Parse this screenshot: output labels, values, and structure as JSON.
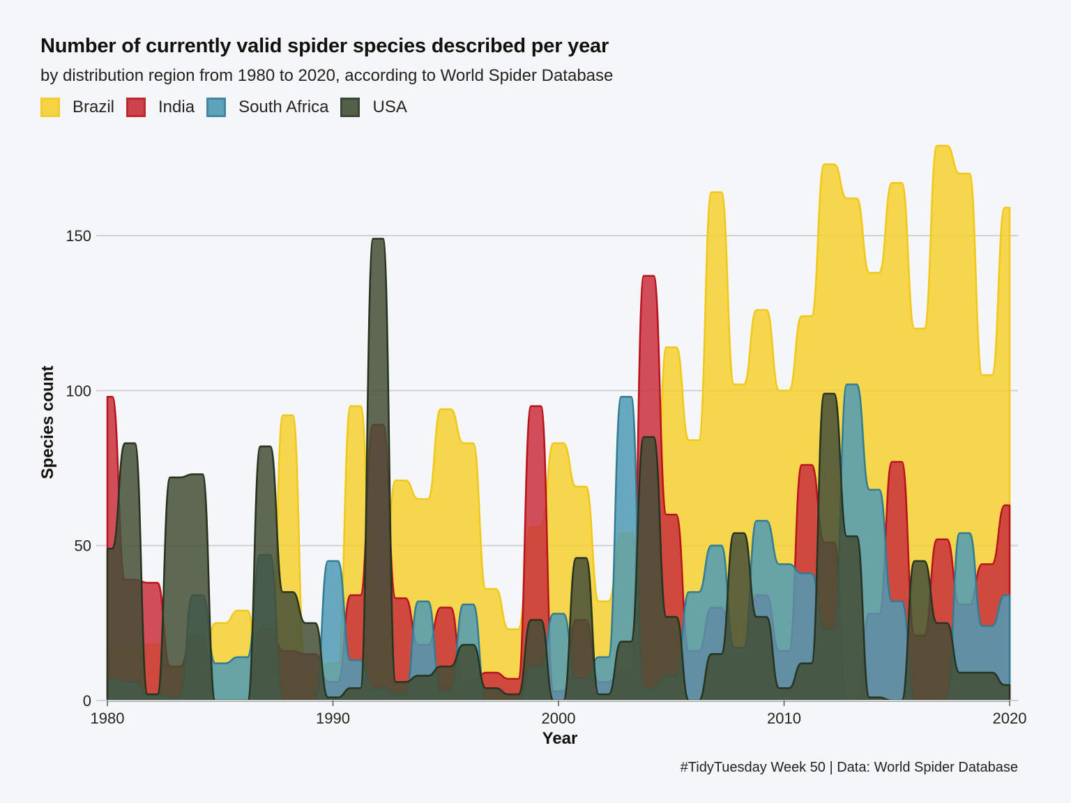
{
  "title": "Number of currently valid spider species described per year",
  "subtitle": "by distribution region from 1980 to 2020, according to World Spider Database",
  "caption": "#TidyTuesday Week 50 | Data: World Spider Database",
  "legend": [
    {
      "label": "Brazil",
      "fill": "#f6d02f",
      "stroke": "#f2c71b"
    },
    {
      "label": "India",
      "fill": "#c8303c",
      "stroke": "#b8131d"
    },
    {
      "label": "South Africa",
      "fill": "#4f9bb5",
      "stroke": "#317c93"
    },
    {
      "label": "USA",
      "fill": "#434f36",
      "stroke": "#253320"
    }
  ],
  "chart_data": {
    "type": "area",
    "xlabel": "Year",
    "ylabel": "Species count",
    "xlim": [
      1980,
      2020
    ],
    "ylim": [
      0,
      180
    ],
    "x_ticks": [
      1980,
      1990,
      2000,
      2010,
      2020
    ],
    "y_ticks": [
      0,
      50,
      100,
      150
    ],
    "grid": "horizontal",
    "legend_position": "top-left",
    "x": [
      1980,
      1981,
      1982,
      1983,
      1984,
      1985,
      1986,
      1987,
      1988,
      1989,
      1990,
      1991,
      1992,
      1993,
      1994,
      1995,
      1996,
      1997,
      1998,
      1999,
      2000,
      2001,
      2002,
      2003,
      2004,
      2005,
      2006,
      2007,
      2008,
      2009,
      2010,
      2011,
      2012,
      2013,
      2014,
      2015,
      2016,
      2017,
      2018,
      2019,
      2020
    ],
    "series": [
      {
        "name": "Brazil",
        "values": [
          17,
          18,
          18,
          11,
          9,
          25,
          29,
          0,
          92,
          9,
          12,
          95,
          34,
          71,
          65,
          94,
          83,
          36,
          23,
          56,
          83,
          69,
          32,
          54,
          35,
          114,
          84,
          164,
          102,
          126,
          100,
          124,
          173,
          162,
          138,
          167,
          120,
          179,
          170,
          105,
          159
        ]
      },
      {
        "name": "India",
        "values": [
          98,
          39,
          38,
          11,
          21,
          0,
          0,
          23,
          16,
          15,
          6,
          34,
          89,
          33,
          18,
          30,
          6,
          9,
          7,
          95,
          3,
          26,
          6,
          9,
          137,
          60,
          16,
          30,
          15,
          34,
          16,
          76,
          51,
          0,
          28,
          77,
          21,
          52,
          31,
          44,
          63
        ]
      },
      {
        "name": "South Africa",
        "values": [
          7,
          6,
          2,
          1,
          34,
          12,
          14,
          47,
          0,
          0,
          45,
          13,
          4,
          2,
          32,
          3,
          31,
          0,
          0,
          11,
          28,
          7,
          14,
          98,
          4,
          8,
          35,
          50,
          17,
          58,
          44,
          41,
          23,
          102,
          68,
          32,
          0,
          0,
          54,
          24,
          34
        ]
      },
      {
        "name": "USA",
        "values": [
          49,
          83,
          2,
          72,
          73,
          0,
          0,
          82,
          35,
          25,
          1,
          4,
          149,
          6,
          8,
          11,
          18,
          4,
          2,
          26,
          0,
          46,
          2,
          19,
          85,
          27,
          0,
          15,
          54,
          27,
          4,
          12,
          99,
          53,
          1,
          0,
          45,
          25,
          9,
          9,
          5
        ]
      }
    ]
  }
}
